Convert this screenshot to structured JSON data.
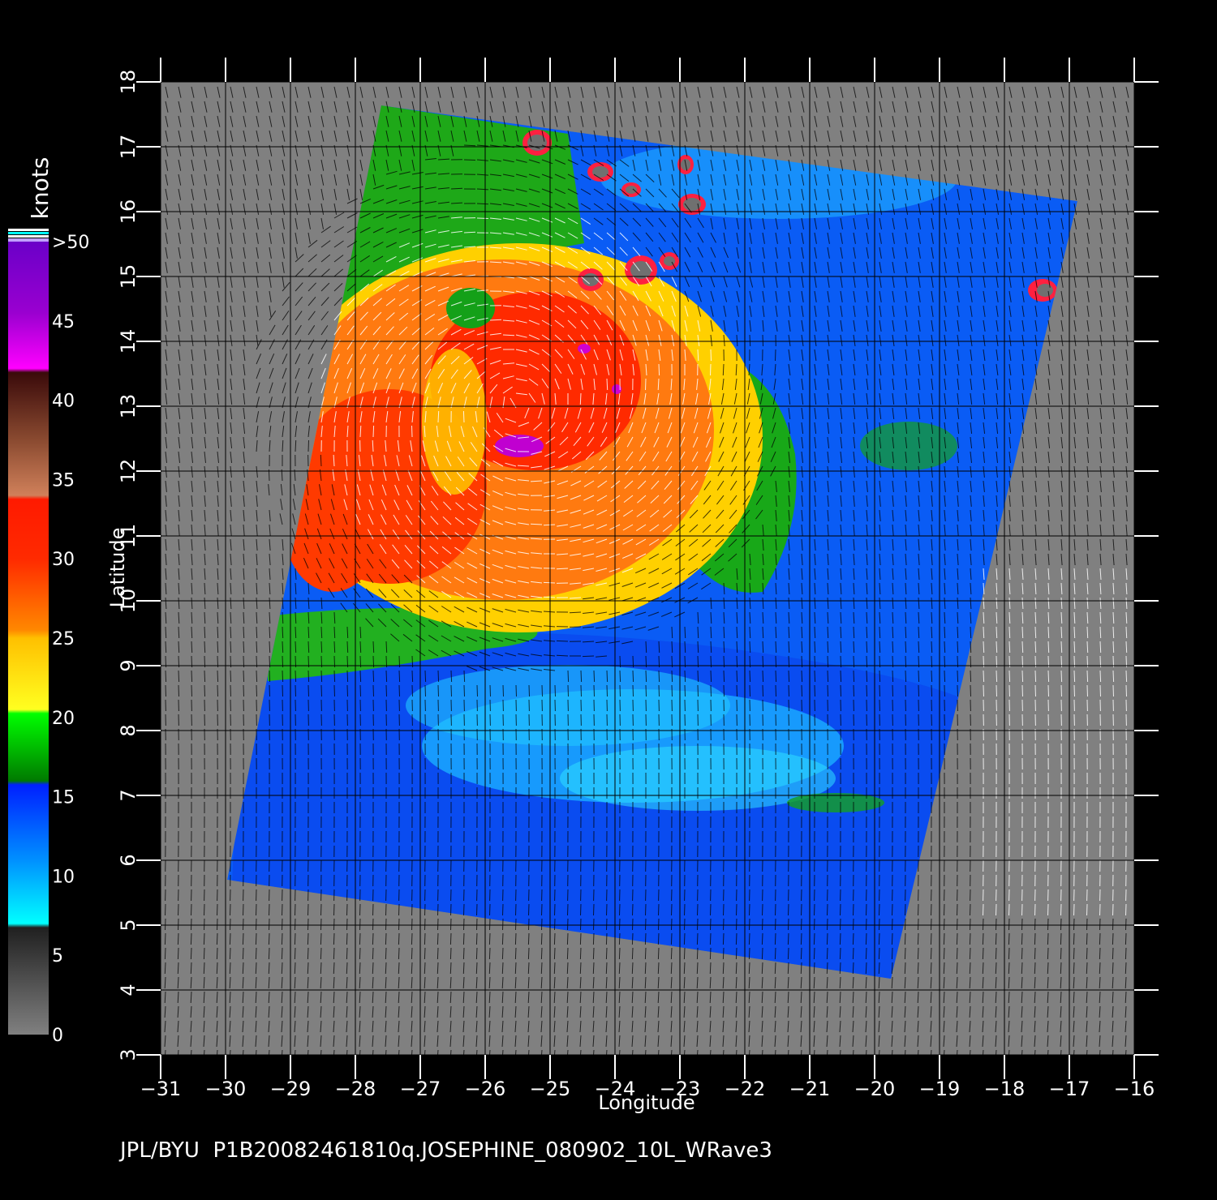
{
  "footer": "JPL/BYU  P1B20082461810q.JOSEPHINE_080902_10L_WRave3",
  "axes": {
    "xlabel": "Longitude",
    "ylabel": "Latitude",
    "xlim": [
      -31,
      -16
    ],
    "ylim": [
      3,
      18
    ],
    "xticks": [
      "−31",
      "−30",
      "−29",
      "−28",
      "−27",
      "−26",
      "−25",
      "−24",
      "−23",
      "−22",
      "−21",
      "−20",
      "−19",
      "−18",
      "−17",
      "−16"
    ],
    "yticks": [
      "3",
      "4",
      "5",
      "6",
      "7",
      "8",
      "9",
      "10",
      "11",
      "12",
      "13",
      "14",
      "15",
      "16",
      "17",
      "18"
    ]
  },
  "colorbar": {
    "unit": "knots",
    "labels": [
      ">50",
      "45",
      "40",
      "35",
      "30",
      "25",
      "20",
      "15",
      "10",
      "5",
      "0"
    ],
    "colors": {
      "0-5": "#6e6e6e",
      "5-10": "#00e8ff",
      "10-15": "#0050ff",
      "15-20": "#00c800",
      "20-25": "#ffd400",
      "25-30": "#ff6a00",
      "30-35": "#ff1a00",
      "35-40": "#8a3a20",
      "40-45": "#ff00ff",
      "45-50": "#9a00d0"
    }
  },
  "colors": {
    "background": "#000000",
    "no_data": "#808080",
    "grid": "#000000"
  }
}
